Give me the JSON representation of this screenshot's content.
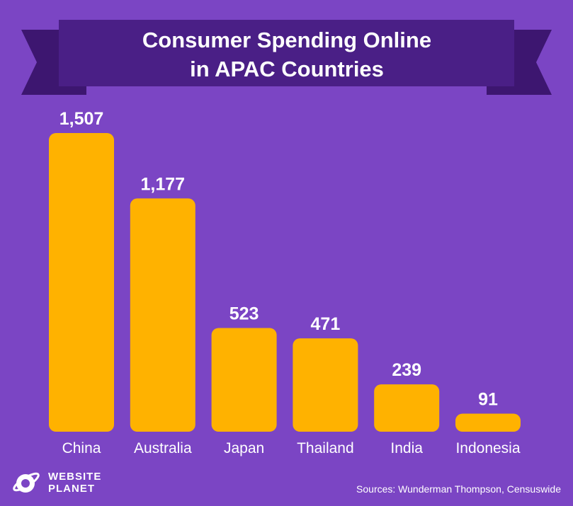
{
  "colors": {
    "background": "#7b45c4",
    "banner": "#4a1f86",
    "banner_tail": "#3d1670",
    "bar": "#ffb200",
    "text": "#ffffff"
  },
  "brand": {
    "icon": "planet-icon",
    "line1": "WEBSITE",
    "line2": "PLANET"
  },
  "source": "Sources: Wunderman Thompson, Censuswide",
  "chart_data": {
    "type": "bar",
    "title": [
      "Consumer Spending Online",
      "in APAC Countries"
    ],
    "categories": [
      "China",
      "Australia",
      "Japan",
      "Thailand",
      "India",
      "Indonesia"
    ],
    "values": [
      1507,
      1177,
      523,
      471,
      239,
      91
    ],
    "value_labels": [
      "1,507",
      "1,177",
      "523",
      "471",
      "239",
      "91"
    ],
    "grid": false,
    "legend": "none"
  }
}
